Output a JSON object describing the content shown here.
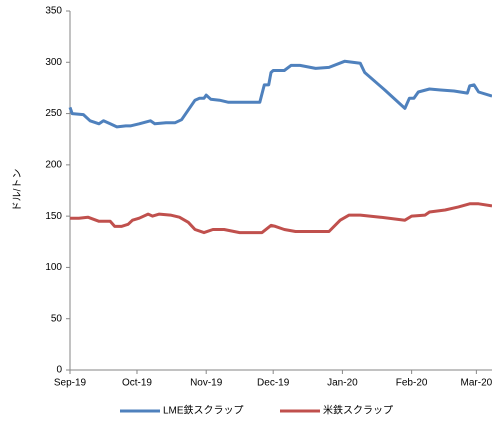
{
  "chart_data": {
    "type": "line",
    "y_label": "ドル/トン",
    "xlim": [
      0,
      189
    ],
    "xticks": [
      {
        "value": 0,
        "label": "Sep-19"
      },
      {
        "value": 30,
        "label": "Oct-19"
      },
      {
        "value": 61,
        "label": "Nov-19"
      },
      {
        "value": 91,
        "label": "Dec-19"
      },
      {
        "value": 122,
        "label": "Jan-20"
      },
      {
        "value": 153,
        "label": "Feb-20"
      },
      {
        "value": 182,
        "label": "Mar-20"
      }
    ],
    "ylim": [
      0,
      350
    ],
    "yticks": [
      0,
      50,
      100,
      150,
      200,
      250,
      300,
      350
    ],
    "grid": false,
    "legend": "bottom",
    "series": [
      {
        "name": "LME鉄スクラップ",
        "color": "#4f81bd",
        "x": [
          0,
          1,
          6,
          9,
          13,
          15,
          18,
          21,
          25,
          27,
          31,
          36,
          38,
          43,
          47,
          50,
          56,
          58,
          60,
          61,
          63,
          67,
          71,
          85,
          87,
          89,
          90,
          91,
          94,
          96,
          99,
          103,
          110,
          116,
          123,
          130,
          132,
          141,
          150,
          152,
          154,
          156,
          161,
          166,
          172,
          178,
          179,
          181,
          183,
          189
        ],
        "values": [
          256,
          250,
          249,
          243,
          240,
          243,
          240,
          237,
          238,
          238,
          240,
          243,
          240,
          241,
          241,
          244,
          263,
          265,
          265,
          268,
          264,
          263,
          261,
          261,
          278,
          278,
          290,
          292,
          292,
          292,
          297,
          297,
          294,
          295,
          301,
          299,
          290,
          273,
          255,
          265,
          265,
          271,
          274,
          273,
          272,
          270,
          277,
          278,
          271,
          267
        ]
      },
      {
        "name": "米鉄スクラップ",
        "color": "#c0504d",
        "x": [
          0,
          4,
          8,
          13,
          18,
          20,
          23,
          26,
          28,
          31,
          35,
          37,
          40,
          45,
          49,
          53,
          56,
          60,
          64,
          69,
          76,
          83,
          86,
          90,
          92,
          96,
          101,
          112,
          116,
          121,
          125,
          130,
          139,
          150,
          153,
          159,
          161,
          168,
          174,
          179,
          183,
          189
        ],
        "values": [
          148,
          148,
          149,
          145,
          145,
          140,
          140,
          142,
          146,
          148,
          152,
          150,
          152,
          151,
          149,
          144,
          137,
          134,
          137,
          137,
          134,
          134,
          134,
          141,
          140,
          137,
          135,
          135,
          135,
          146,
          151,
          151,
          149,
          146,
          150,
          151,
          154,
          156,
          159,
          162,
          162,
          160
        ]
      }
    ]
  }
}
